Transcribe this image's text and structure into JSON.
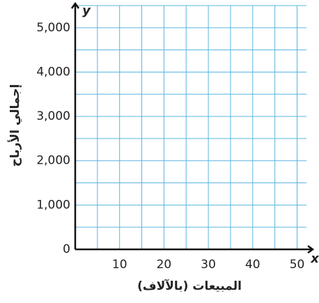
{
  "chart_data": {
    "type": "grid",
    "xlabel": "المبيعات (بالآلاف)",
    "ylabel": "إجمالي الأرباح",
    "x_symbol": "x",
    "y_symbol": "y",
    "xlim": [
      0,
      54
    ],
    "ylim": [
      0,
      5500
    ],
    "xticks": [
      10,
      20,
      30,
      40,
      50
    ],
    "yticks": [
      0,
      {
        "value": 1000,
        "label": "1,000"
      },
      {
        "value": 2000,
        "label": "2,000"
      },
      {
        "value": 3000,
        "label": "3,000"
      },
      {
        "value": 4000,
        "label": "4,000"
      },
      {
        "value": 5000,
        "label": "5,000"
      }
    ],
    "minor_xticks": [
      5,
      15,
      25,
      35,
      45
    ],
    "minor_yticks": [
      500,
      1500,
      2500,
      3500,
      4500,
      5500
    ],
    "grid": true,
    "grid_color": "#5ab4e0"
  }
}
